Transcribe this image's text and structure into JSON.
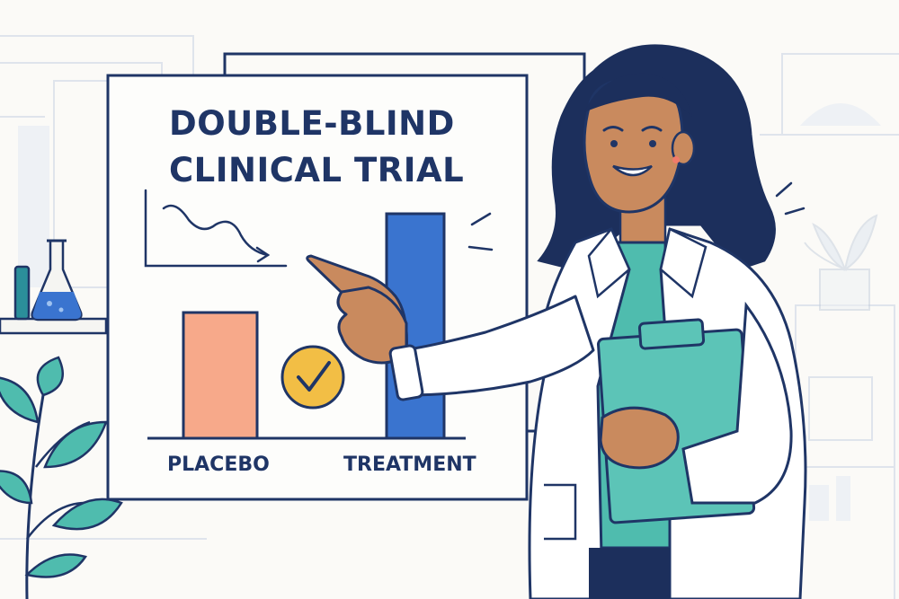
{
  "board": {
    "title_line1": "DOUBLE-BLIND",
    "title_line2": "CLINICAL TRIAL"
  },
  "chart_data": {
    "type": "bar",
    "categories": [
      "PLACEBO",
      "TREATMENT"
    ],
    "values": [
      140,
      250
    ],
    "title": "DOUBLE-BLIND CLINICAL TRIAL",
    "xlabel": "",
    "ylabel": "",
    "grid": false,
    "bar_colors": [
      "#f7a98a",
      "#3a74cf"
    ]
  },
  "colors": {
    "ink": "#1f3566",
    "placebo_bar": "#f7a98a",
    "treatment_bar": "#3a74cf",
    "checkmark_badge": "#f2be45",
    "scrubs": "#4fbcae",
    "clipboard": "#5cc4b7",
    "skin": "#c98a5e",
    "hair": "#1c2f5c",
    "background": "#fbfaf7"
  },
  "icons": [
    "check-icon",
    "trend-down-icon",
    "flask-icon",
    "plant-icon"
  ]
}
